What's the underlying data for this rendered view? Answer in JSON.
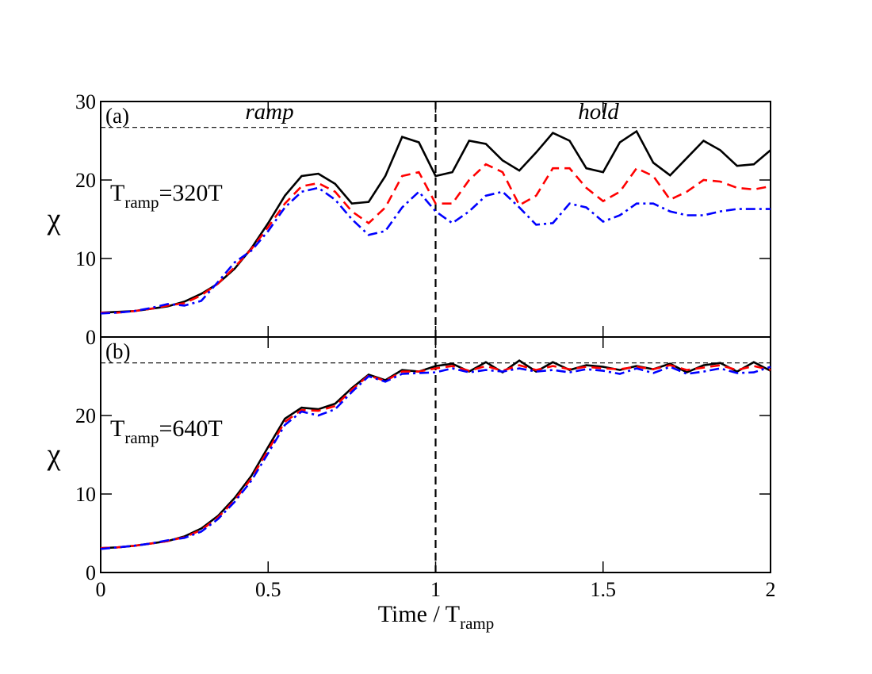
{
  "chart_data": [
    {
      "type": "line",
      "panel_label": "(a)",
      "phase_labels": [
        "ramp",
        "hold"
      ],
      "inset_label": {
        "main": "T",
        "sub": "ramp",
        "tail": "=320T"
      },
      "ylabel": "χ",
      "xlim": [
        0,
        2
      ],
      "xticks": [
        0,
        0.5,
        1,
        1.5,
        2
      ],
      "xtick_labels": false,
      "ylim": [
        0,
        30
      ],
      "yticks": [
        0,
        10,
        20,
        30
      ],
      "hline": 26.7,
      "vline": 1,
      "x": [
        0,
        0.05,
        0.1,
        0.15,
        0.2,
        0.25,
        0.3,
        0.35,
        0.4,
        0.45,
        0.5,
        0.55,
        0.6,
        0.65,
        0.7,
        0.75,
        0.8,
        0.85,
        0.9,
        0.95,
        1,
        1.05,
        1.1,
        1.15,
        1.2,
        1.25,
        1.3,
        1.35,
        1.4,
        1.45,
        1.5,
        1.55,
        1.6,
        1.65,
        1.7,
        1.75,
        1.8,
        1.85,
        1.9,
        1.95,
        2
      ],
      "series": [
        {
          "color": "#000000",
          "dash": "solid",
          "values": [
            3.1,
            3.2,
            3.3,
            3.6,
            3.9,
            4.5,
            5.5,
            6.8,
            8.7,
            11.3,
            14.5,
            18,
            20.5,
            20.8,
            19.5,
            17,
            17.2,
            20.5,
            25.5,
            24.8,
            20.5,
            21,
            25,
            24.6,
            22.5,
            21.2,
            23.5,
            26,
            25,
            21.5,
            21,
            24.8,
            26.2,
            22.2,
            20.6,
            22.8,
            25,
            23.8,
            21.8,
            22,
            23.8
          ]
        },
        {
          "color": "#ff0000",
          "dash": "dashed",
          "values": [
            3.1,
            3.1,
            3.3,
            3.6,
            4,
            4.3,
            5.3,
            6.8,
            8.9,
            11.2,
            14,
            17,
            19.2,
            19.6,
            18.5,
            16,
            14.5,
            16.5,
            20.5,
            21,
            17,
            17,
            20,
            22,
            21,
            16.8,
            18,
            21.5,
            21.5,
            19,
            17.3,
            18.5,
            21.5,
            20.5,
            17.5,
            18.5,
            20,
            19.8,
            19,
            18.8,
            19.2
          ]
        },
        {
          "color": "#0000ff",
          "dash": "dashdot",
          "values": [
            3,
            3.1,
            3.3,
            3.7,
            4.2,
            4,
            4.6,
            7,
            9.5,
            11,
            13.5,
            16.5,
            18.5,
            19,
            17.5,
            15,
            13,
            13.5,
            16.5,
            18.5,
            16,
            14.5,
            16,
            18,
            18.5,
            16.5,
            14.3,
            14.5,
            17,
            16.5,
            14.7,
            15.5,
            17,
            17,
            16,
            15.5,
            15.5,
            16,
            16.3,
            16.3,
            16.3
          ]
        }
      ]
    },
    {
      "type": "line",
      "panel_label": "(b)",
      "inset_label": {
        "main": "T",
        "sub": "ramp",
        "tail": "=640T"
      },
      "ylabel": "χ",
      "xlabel": {
        "main": "Time / T",
        "sub": "ramp"
      },
      "xlim": [
        0,
        2
      ],
      "xticks": [
        0,
        0.5,
        1,
        1.5,
        2
      ],
      "xtick_labels": true,
      "ylim": [
        0,
        30
      ],
      "yticks": [
        0,
        10,
        20
      ],
      "hline": 26.7,
      "vline": 1,
      "x": [
        0,
        0.05,
        0.1,
        0.15,
        0.2,
        0.25,
        0.3,
        0.35,
        0.4,
        0.45,
        0.5,
        0.55,
        0.6,
        0.65,
        0.7,
        0.75,
        0.8,
        0.85,
        0.9,
        0.95,
        1,
        1.05,
        1.1,
        1.15,
        1.2,
        1.25,
        1.3,
        1.35,
        1.4,
        1.45,
        1.5,
        1.55,
        1.6,
        1.65,
        1.7,
        1.75,
        1.8,
        1.85,
        1.9,
        1.95,
        2
      ],
      "series": [
        {
          "color": "#000000",
          "dash": "solid",
          "values": [
            3.1,
            3.2,
            3.4,
            3.7,
            4,
            4.6,
            5.6,
            7.2,
            9.5,
            12.3,
            16,
            19.6,
            21,
            20.8,
            21.5,
            23.5,
            25.2,
            24.5,
            25.8,
            25.6,
            26.3,
            26.6,
            25.6,
            26.8,
            25.5,
            27,
            25.6,
            26.8,
            25.8,
            26.4,
            26.2,
            25.8,
            26.3,
            25.9,
            26.6,
            25.5,
            26.4,
            26.7,
            25.6,
            26.8,
            25.7
          ]
        },
        {
          "color": "#ff0000",
          "dash": "dashed",
          "values": [
            3.1,
            3.2,
            3.4,
            3.7,
            4,
            4.5,
            5.4,
            7,
            9.2,
            12,
            15.6,
            19.2,
            20.7,
            20.6,
            21.2,
            23.3,
            25.1,
            24.4,
            25.6,
            25.6,
            26,
            26.3,
            25.7,
            26.3,
            25.7,
            26.4,
            25.8,
            26.3,
            25.9,
            26.2,
            26,
            25.9,
            26.2,
            25.9,
            26.4,
            25.8,
            26.1,
            26.4,
            25.8,
            26.3,
            25.8
          ]
        },
        {
          "color": "#0000ff",
          "dash": "dashdot",
          "values": [
            3,
            3.2,
            3.4,
            3.7,
            4.1,
            4.4,
            5.2,
            6.8,
            9,
            11.7,
            15.2,
            18.8,
            20.5,
            20,
            20.8,
            23,
            25,
            24.3,
            25.3,
            25.4,
            25.5,
            26,
            25.5,
            25.8,
            25.6,
            26,
            25.6,
            25.8,
            25.5,
            25.9,
            25.7,
            25.3,
            26,
            25.4,
            26.2,
            25.3,
            25.6,
            26,
            25.4,
            25.5,
            26.2
          ]
        }
      ]
    }
  ]
}
